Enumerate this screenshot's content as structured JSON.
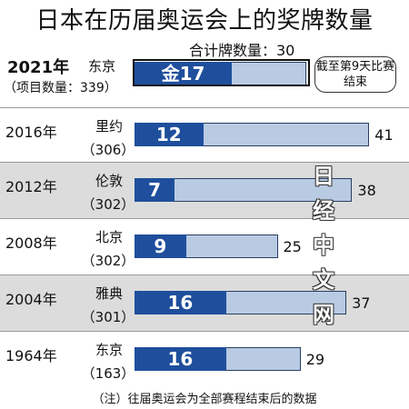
{
  "title": "日本在历届奥运会上的奖牌数量",
  "current_total_label": "合计牌数量：30",
  "note": "截至第9天比赛结束",
  "footnote": "（注）往届奥运会为全部赛程结束后的数据",
  "watermark": "日经中文网",
  "colors": {
    "gold_fill": "#1f4f9c",
    "total_track": "#b9cbe3",
    "row_shade": "#dcdcdc"
  },
  "chart_data": {
    "type": "bar",
    "orientation": "horizontal",
    "title": "日本在历届奥运会上的奖牌数量",
    "xlabel": "",
    "ylabel": "",
    "xlim": [
      0,
      43
    ],
    "legend": "none",
    "grid": false,
    "series": [
      {
        "name": "金",
        "values": [
          17,
          12,
          7,
          9,
          16,
          16
        ]
      },
      {
        "name": "",
        "values": [
          30,
          41,
          38,
          25,
          37,
          29
        ]
      }
    ],
    "rows": [
      {
        "year": "2021年",
        "events": "（项目数量：339）",
        "city": "东京",
        "gold": 17,
        "gold_label": "金17",
        "total": 30,
        "total_label": ""
      },
      {
        "year": "2016年",
        "events": "（306）",
        "city": "里约",
        "gold": 12,
        "gold_label": "12",
        "total": 41,
        "total_label": "41"
      },
      {
        "year": "2012年",
        "events": "（302）",
        "city": "伦敦",
        "gold": 7,
        "gold_label": "7",
        "total": 38,
        "total_label": "38"
      },
      {
        "year": "2008年",
        "events": "（302）",
        "city": "北京",
        "gold": 9,
        "gold_label": "9",
        "total": 25,
        "total_label": "25"
      },
      {
        "year": "2004年",
        "events": "（301）",
        "city": "雅典",
        "gold": 16,
        "gold_label": "16",
        "total": 37,
        "total_label": "37"
      },
      {
        "year": "1964年",
        "events": "（163）",
        "city": "东京",
        "gold": 16,
        "gold_label": "16",
        "total": 29,
        "total_label": "29"
      }
    ]
  }
}
